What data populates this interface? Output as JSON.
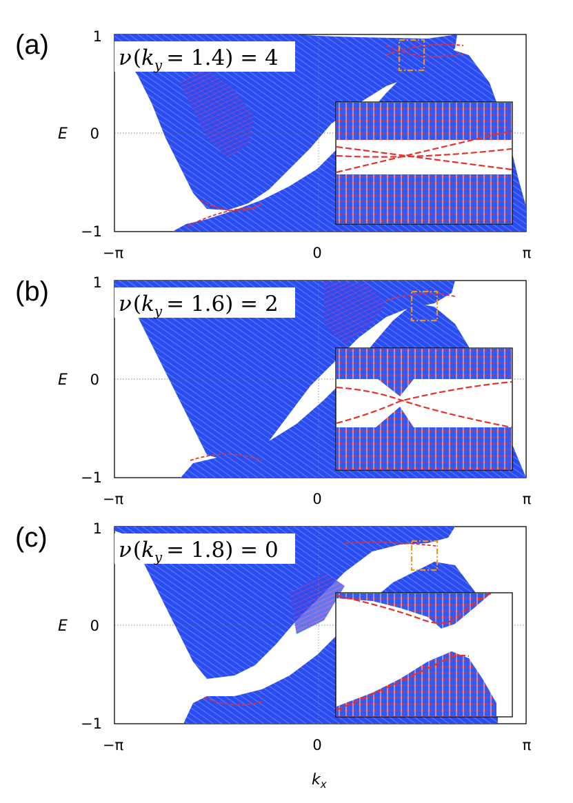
{
  "figure": {
    "xlabel": "k",
    "xlabel_sub": "x"
  },
  "chart_data": [
    {
      "type": "line",
      "panel": "(a)",
      "annotation": {
        "nu": "ν",
        "k": "k",
        "k_sub": "y",
        "eq": "= 1.4) = 4"
      },
      "ylabel": "E",
      "xlim": [
        -3.1416,
        3.1416
      ],
      "ylim": [
        -1,
        1
      ],
      "x_ticks": [
        "−π",
        "0",
        "π"
      ],
      "y_ticks": [
        "1",
        "0",
        "−1"
      ],
      "grid": "dotted zero lines",
      "series": [
        {
          "x": [
            -3.14,
            -2.6,
            -2.2,
            -1.8,
            -1.2,
            0.0,
            1.2,
            2.0,
            2.5,
            3.14
          ],
          "y": [
            0.98,
            0.7,
            0.2,
            -0.55,
            -0.82,
            -0.2,
            0.4,
            0.75,
            0.86,
            0.98
          ]
        },
        {
          "x": [
            -3.14,
            -2.2,
            -1.6,
            -0.8,
            0.0,
            1.0,
            2.0,
            2.5,
            3.14
          ],
          "y": [
            -0.98,
            -0.9,
            -0.85,
            -0.55,
            -0.05,
            0.55,
            0.8,
            0.84,
            0.98
          ]
        }
      ],
      "highlight_box": {
        "x": [
          1.75,
          2.12
        ],
        "y": [
          0.67,
          0.97
        ]
      },
      "colors": {
        "bulk": "#2a4cf0",
        "edge": "#e8302a",
        "box": "#f0961e"
      }
    },
    {
      "type": "line",
      "panel": "(b)",
      "annotation": {
        "nu": "ν",
        "k": "k",
        "k_sub": "y",
        "eq": "= 1.6) = 2"
      },
      "ylabel": "E",
      "xlim": [
        -3.1416,
        3.1416
      ],
      "ylim": [
        -1,
        1
      ],
      "x_ticks": [
        "−π",
        "0",
        "π"
      ],
      "y_ticks": [
        "1",
        "0",
        "−1"
      ],
      "grid": "dotted zero lines",
      "series": [
        {
          "x": [
            -3.14,
            -2.5,
            -2.0,
            -1.6,
            -1.0,
            0.0,
            1.0,
            2.0,
            2.3,
            3.14
          ],
          "y": [
            0.98,
            0.5,
            -0.2,
            -0.77,
            -0.85,
            -0.5,
            0.2,
            0.8,
            0.85,
            0.98
          ]
        },
        {
          "x": [
            -3.14,
            -2.2,
            -1.6,
            -1.0,
            0.0,
            1.0,
            2.0,
            2.3,
            3.14
          ],
          "y": [
            -0.98,
            -0.9,
            -0.8,
            -0.6,
            0.0,
            0.6,
            0.86,
            0.84,
            0.98
          ]
        }
      ],
      "highlight_box": {
        "x": [
          1.9,
          2.25
        ],
        "y": [
          0.6,
          0.9
        ]
      },
      "colors": {
        "bulk": "#2a4cf0",
        "edge": "#e8302a",
        "box": "#f0961e"
      }
    },
    {
      "type": "line",
      "panel": "(c)",
      "annotation": {
        "nu": "ν",
        "k": "k",
        "k_sub": "y",
        "eq": "= 1.8) = 0"
      },
      "ylabel": "E",
      "xlim": [
        -3.1416,
        3.1416
      ],
      "ylim": [
        -1,
        1
      ],
      "x_ticks": [
        "−π",
        "0",
        "π"
      ],
      "y_ticks": [
        "1",
        "0",
        "−1"
      ],
      "grid": "dotted zero lines",
      "series": [
        {
          "x": [
            -3.14,
            -2.4,
            -1.9,
            -1.6,
            -1.0,
            0.0,
            1.0,
            2.0,
            2.5,
            3.14
          ],
          "y": [
            0.98,
            0.6,
            -0.3,
            -0.78,
            -0.84,
            -0.5,
            0.2,
            0.82,
            0.86,
            0.98
          ]
        },
        {
          "x": [
            -3.14,
            -2.2,
            -1.6,
            -1.0,
            0.0,
            1.0,
            1.8,
            2.0,
            2.4,
            3.14
          ],
          "y": [
            -0.98,
            -0.9,
            -0.82,
            -0.6,
            0.0,
            0.45,
            0.6,
            0.66,
            0.3,
            -0.98
          ]
        }
      ],
      "highlight_box": {
        "x": [
          1.85,
          2.25
        ],
        "y": [
          0.56,
          0.85
        ]
      },
      "colors": {
        "bulk": "#2a4cf0",
        "edge": "#e8302a",
        "box": "#f0961e"
      }
    }
  ]
}
